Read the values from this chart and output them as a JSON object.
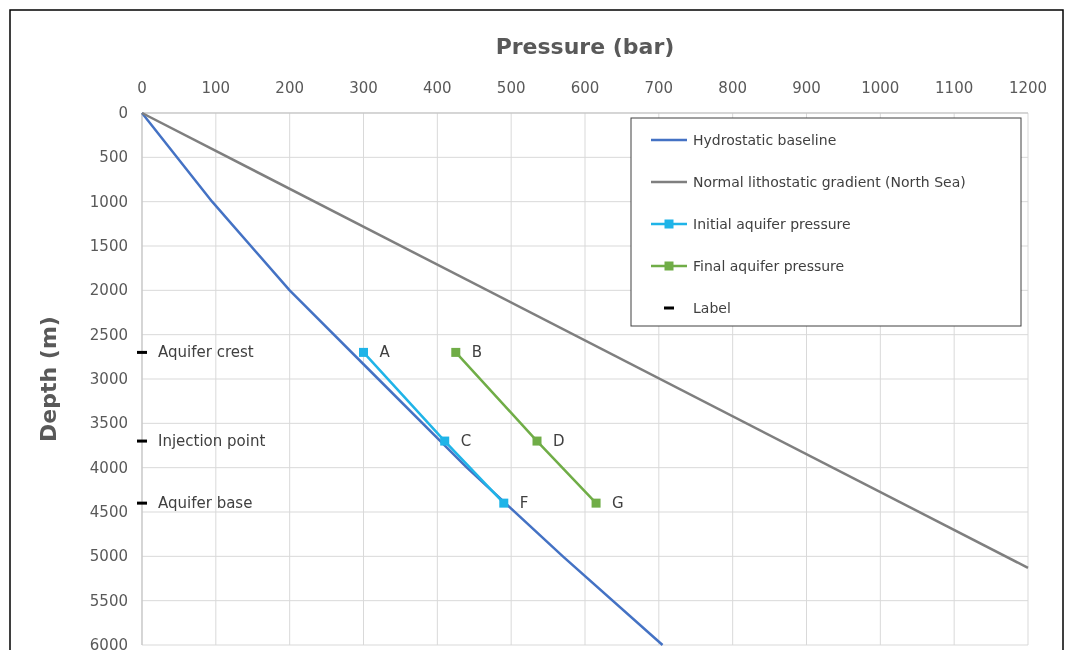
{
  "chart_data": {
    "type": "line",
    "xlabel": "Pressure (bar)",
    "ylabel": "Depth (m)",
    "xlim": [
      0,
      1200
    ],
    "xticks": [
      0,
      100,
      200,
      300,
      400,
      500,
      600,
      700,
      800,
      900,
      1000,
      1100,
      1200
    ],
    "ylim": [
      6000,
      0
    ],
    "yticks": [
      0,
      500,
      1000,
      1500,
      2000,
      2500,
      3000,
      3500,
      4000,
      4500,
      5000,
      5500,
      6000
    ],
    "grid": true,
    "legend": "top right",
    "series": [
      {
        "name": "Hydrostatic baseline",
        "color": "#4472c4",
        "marker": "none",
        "x": [
          0,
          95,
          200,
          320,
          440,
          570,
          705
        ],
        "values": [
          0,
          1000,
          2000,
          3000,
          4000,
          5000,
          6000
        ]
      },
      {
        "name": "Normal lithostatic gradient (North Sea)",
        "color": "#7f7f7f",
        "marker": "none",
        "x": [
          0,
          1200
        ],
        "values": [
          0,
          5130
        ]
      },
      {
        "name": "Initial aquifer pressure",
        "color": "#1fb4e8",
        "marker": "square",
        "x": [
          300,
          410,
          490
        ],
        "values": [
          2700,
          3700,
          4400
        ],
        "value_labels": [
          "A",
          "C",
          "F"
        ]
      },
      {
        "name": "Final aquifer pressure",
        "color": "#70ad47",
        "marker": "square",
        "x": [
          425,
          535,
          615
        ],
        "values": [
          2700,
          3700,
          4400
        ],
        "value_labels": [
          "B",
          "D",
          "G"
        ]
      },
      {
        "name": "Label",
        "type": "scatter",
        "color": "#000000",
        "x": [
          0,
          0,
          0
        ],
        "values": [
          2700,
          3700,
          4400
        ],
        "value_labels": [
          "Aquifer crest",
          "Injection point",
          "Aquifer base"
        ]
      }
    ]
  }
}
